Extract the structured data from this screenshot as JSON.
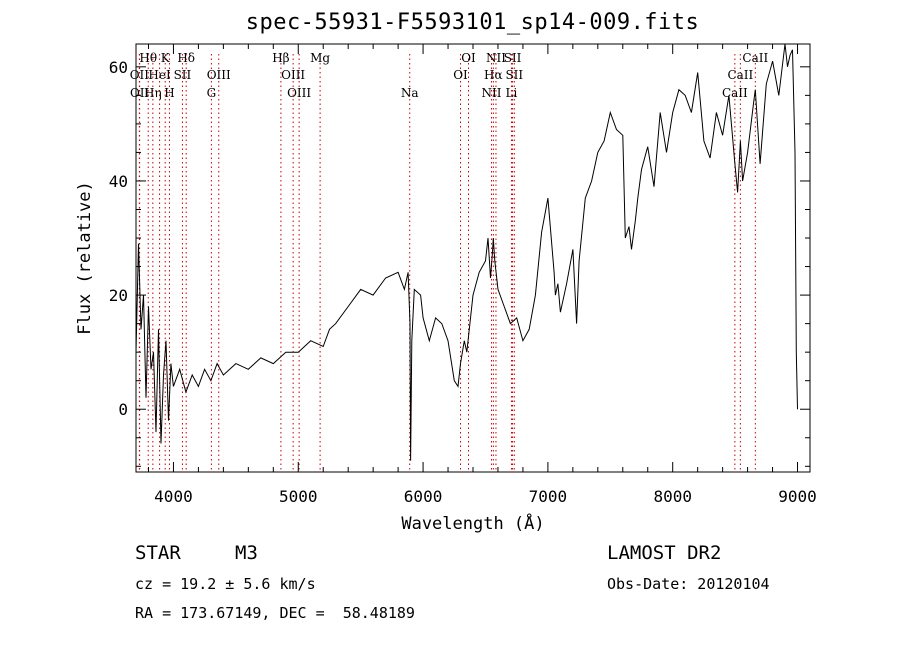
{
  "chart_data": {
    "type": "line",
    "title": "spec-55931-F5593101_sp14-009.fits",
    "xlabel": "Wavelength (Å)",
    "ylabel": "Flux (relative)",
    "xlim": [
      3700,
      9100
    ],
    "ylim": [
      -11,
      64
    ],
    "x_ticks": [
      4000,
      5000,
      6000,
      7000,
      8000,
      9000
    ],
    "y_ticks": [
      0,
      20,
      40,
      60
    ],
    "grid": false,
    "line_color": "#000000",
    "marker_color": "#cc0000",
    "spectrum": {
      "name": "",
      "x": [
        3700,
        3720,
        3740,
        3760,
        3780,
        3800,
        3820,
        3840,
        3860,
        3880,
        3900,
        3920,
        3940,
        3960,
        3980,
        4000,
        4050,
        4100,
        4150,
        4200,
        4250,
        4300,
        4350,
        4400,
        4500,
        4600,
        4700,
        4800,
        4900,
        5000,
        5100,
        5200,
        5250,
        5300,
        5400,
        5500,
        5600,
        5700,
        5800,
        5850,
        5880,
        5895,
        5900,
        5910,
        5930,
        5980,
        6000,
        6050,
        6100,
        6150,
        6200,
        6250,
        6280,
        6300,
        6330,
        6350,
        6400,
        6450,
        6500,
        6520,
        6540,
        6555,
        6563,
        6575,
        6600,
        6650,
        6700,
        6750,
        6800,
        6850,
        6900,
        6950,
        7000,
        7050,
        7060,
        7080,
        7100,
        7150,
        7200,
        7230,
        7250,
        7300,
        7350,
        7400,
        7450,
        7500,
        7550,
        7600,
        7620,
        7650,
        7670,
        7700,
        7720,
        7750,
        7800,
        7850,
        7900,
        7950,
        8000,
        8050,
        8100,
        8150,
        8200,
        8250,
        8300,
        8350,
        8400,
        8450,
        8498,
        8520,
        8542,
        8560,
        8600,
        8650,
        8662,
        8700,
        8750,
        8800,
        8850,
        8900,
        8920,
        8940,
        8960,
        8980,
        8990,
        9000
      ],
      "y": [
        10,
        29,
        14,
        20,
        2,
        18,
        7,
        10,
        -4,
        14,
        -6,
        6,
        12,
        -2,
        8,
        4,
        7,
        3,
        6,
        4,
        7,
        5,
        8,
        6,
        8,
        7,
        9,
        8,
        10,
        10,
        12,
        11,
        14,
        15,
        18,
        21,
        20,
        23,
        24,
        21,
        24,
        15,
        -9,
        12,
        21,
        20,
        16,
        12,
        16,
        15,
        12,
        5,
        4,
        8,
        12,
        10,
        20,
        24,
        26,
        30,
        23,
        27,
        30,
        26,
        21,
        18,
        15,
        16,
        12,
        14,
        20,
        31,
        37,
        24,
        20,
        22,
        17,
        22,
        28,
        15,
        26,
        37,
        40,
        45,
        47,
        52,
        49,
        48,
        30,
        32,
        28,
        33,
        37,
        42,
        46,
        39,
        52,
        45,
        52,
        56,
        55,
        52,
        59,
        47,
        44,
        52,
        48,
        55,
        43,
        38,
        47,
        40,
        45,
        54,
        56,
        43,
        57,
        61,
        55,
        64,
        60,
        62,
        63,
        45,
        10,
        0
      ]
    },
    "lines": [
      {
        "label": "Hθ",
        "wl": 3798,
        "row": 1
      },
      {
        "label": "K",
        "wl": 3934,
        "row": 1
      },
      {
        "label": "Hδ",
        "wl": 4102,
        "row": 1
      },
      {
        "label": "Hβ",
        "wl": 4861,
        "row": 1
      },
      {
        "label": "Mg",
        "wl": 5175,
        "row": 1
      },
      {
        "label": "OI",
        "wl": 6364,
        "row": 1
      },
      {
        "label": "NII",
        "wl": 6584,
        "row": 1
      },
      {
        "label": "SII",
        "wl": 6717,
        "row": 1
      },
      {
        "label": "CaII",
        "wl": 8662,
        "row": 1
      },
      {
        "label": "OII",
        "wl": 3727,
        "row": 2
      },
      {
        "label": "HeI",
        "wl": 3889,
        "row": 2
      },
      {
        "label": "SII",
        "wl": 4072,
        "row": 2
      },
      {
        "label": "OIII",
        "wl": 4363,
        "row": 2
      },
      {
        "label": "OIII",
        "wl": 4959,
        "row": 2
      },
      {
        "label": "OI",
        "wl": 6300,
        "row": 2
      },
      {
        "label": "Hα",
        "wl": 6563,
        "row": 2
      },
      {
        "label": "SII",
        "wl": 6731,
        "row": 2
      },
      {
        "label": "CaII",
        "wl": 8542,
        "row": 2
      },
      {
        "label": "OII",
        "wl": 3729,
        "row": 3
      },
      {
        "label": "Hη",
        "wl": 3835,
        "row": 3
      },
      {
        "label": "H",
        "wl": 3968,
        "row": 3
      },
      {
        "label": "G",
        "wl": 4304,
        "row": 3
      },
      {
        "label": "OIII",
        "wl": 5007,
        "row": 3
      },
      {
        "label": "Na",
        "wl": 5893,
        "row": 3
      },
      {
        "label": "NII",
        "wl": 6548,
        "row": 3
      },
      {
        "label": "Li",
        "wl": 6708,
        "row": 3
      },
      {
        "label": "CaII",
        "wl": 8498,
        "row": 3
      }
    ]
  },
  "info": {
    "object_type": "STAR",
    "subclass": "M3",
    "survey": "LAMOST DR2",
    "cz": "cz = 19.2 ± 5.6 km/s",
    "obs_date": "Obs-Date: 20120104",
    "coords": "RA = 173.67149, DEC =  58.48189"
  }
}
